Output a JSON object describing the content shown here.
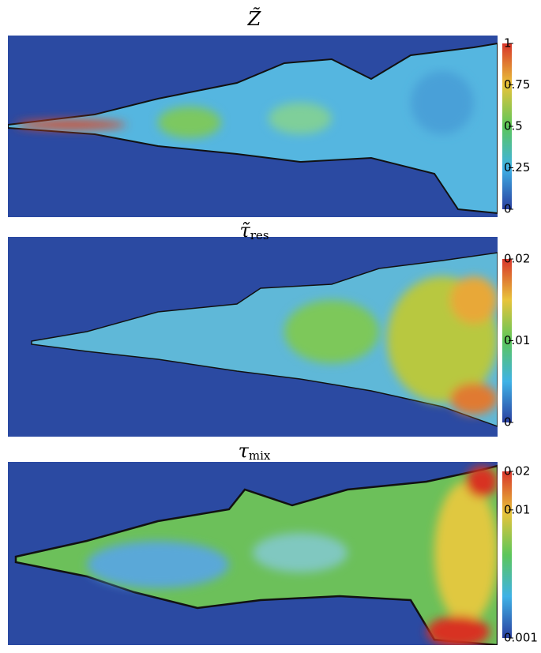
{
  "panels": [
    {
      "symbol": "Z̃",
      "subscript": null,
      "colorbar": {
        "lim": [
          0,
          1
        ],
        "ticks": [
          0,
          0.25,
          0.5,
          0.75,
          1
        ],
        "scale": "linear"
      }
    },
    {
      "symbol": "τ̃",
      "subscript": "res",
      "colorbar": {
        "lim": [
          0,
          0.02
        ],
        "ticks": [
          0,
          0.01,
          0.02
        ],
        "scale": "linear"
      }
    },
    {
      "symbol": "τ",
      "subscript": "mix",
      "colorbar": {
        "lim": [
          0.001,
          0.02
        ],
        "ticks": [
          0.001,
          0.01,
          0.02
        ],
        "scale": "log"
      }
    }
  ]
}
